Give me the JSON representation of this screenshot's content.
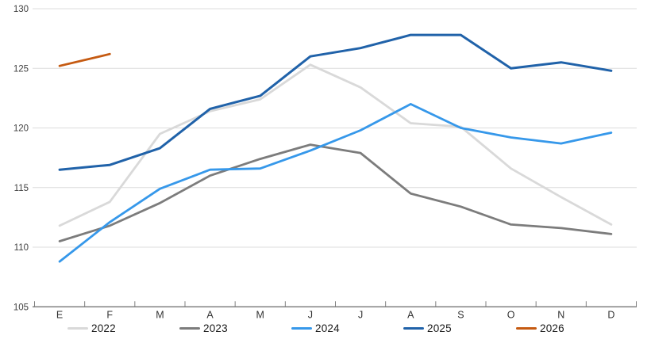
{
  "chart_data": {
    "type": "line",
    "title": "",
    "xlabel": "",
    "ylabel": "",
    "categories": [
      "E",
      "F",
      "M",
      "A",
      "M",
      "J",
      "J",
      "A",
      "S",
      "O",
      "N",
      "D"
    ],
    "ylim": [
      105,
      130
    ],
    "yticks": [
      105,
      110,
      115,
      120,
      125,
      130
    ],
    "grid": "horizontal",
    "legend_position": "bottom",
    "series": [
      {
        "name": "2022",
        "color": "#D9D9D9",
        "values": [
          111.8,
          113.8,
          119.5,
          121.4,
          122.4,
          125.3,
          123.4,
          120.4,
          120.1,
          116.6,
          114.2,
          111.9
        ]
      },
      {
        "name": "2023",
        "color": "#7C7C7C",
        "values": [
          110.5,
          111.8,
          113.7,
          116.0,
          117.4,
          118.6,
          117.9,
          114.5,
          113.4,
          111.9,
          111.6,
          111.1
        ]
      },
      {
        "name": "2024",
        "color": "#3698EA",
        "values": [
          108.8,
          112.1,
          114.9,
          116.5,
          116.6,
          118.1,
          119.8,
          122.0,
          120.0,
          119.2,
          118.7,
          119.6
        ]
      },
      {
        "name": "2025",
        "color": "#2062A9",
        "values": [
          116.5,
          116.9,
          118.3,
          121.6,
          122.7,
          126.0,
          126.7,
          127.8,
          127.8,
          125.0,
          125.5,
          124.8
        ]
      },
      {
        "name": "2026",
        "color": "#C55A11",
        "values": [
          125.2,
          126.2,
          null,
          null,
          null,
          null,
          null,
          null,
          null,
          null,
          null,
          null
        ]
      }
    ]
  },
  "axis_style": {
    "gridline_color": "#DCDCDC",
    "axisline_color": "#808080",
    "tick_color": "#808080",
    "ylabel_color": "#404040",
    "xlabel_color": "#333333"
  }
}
